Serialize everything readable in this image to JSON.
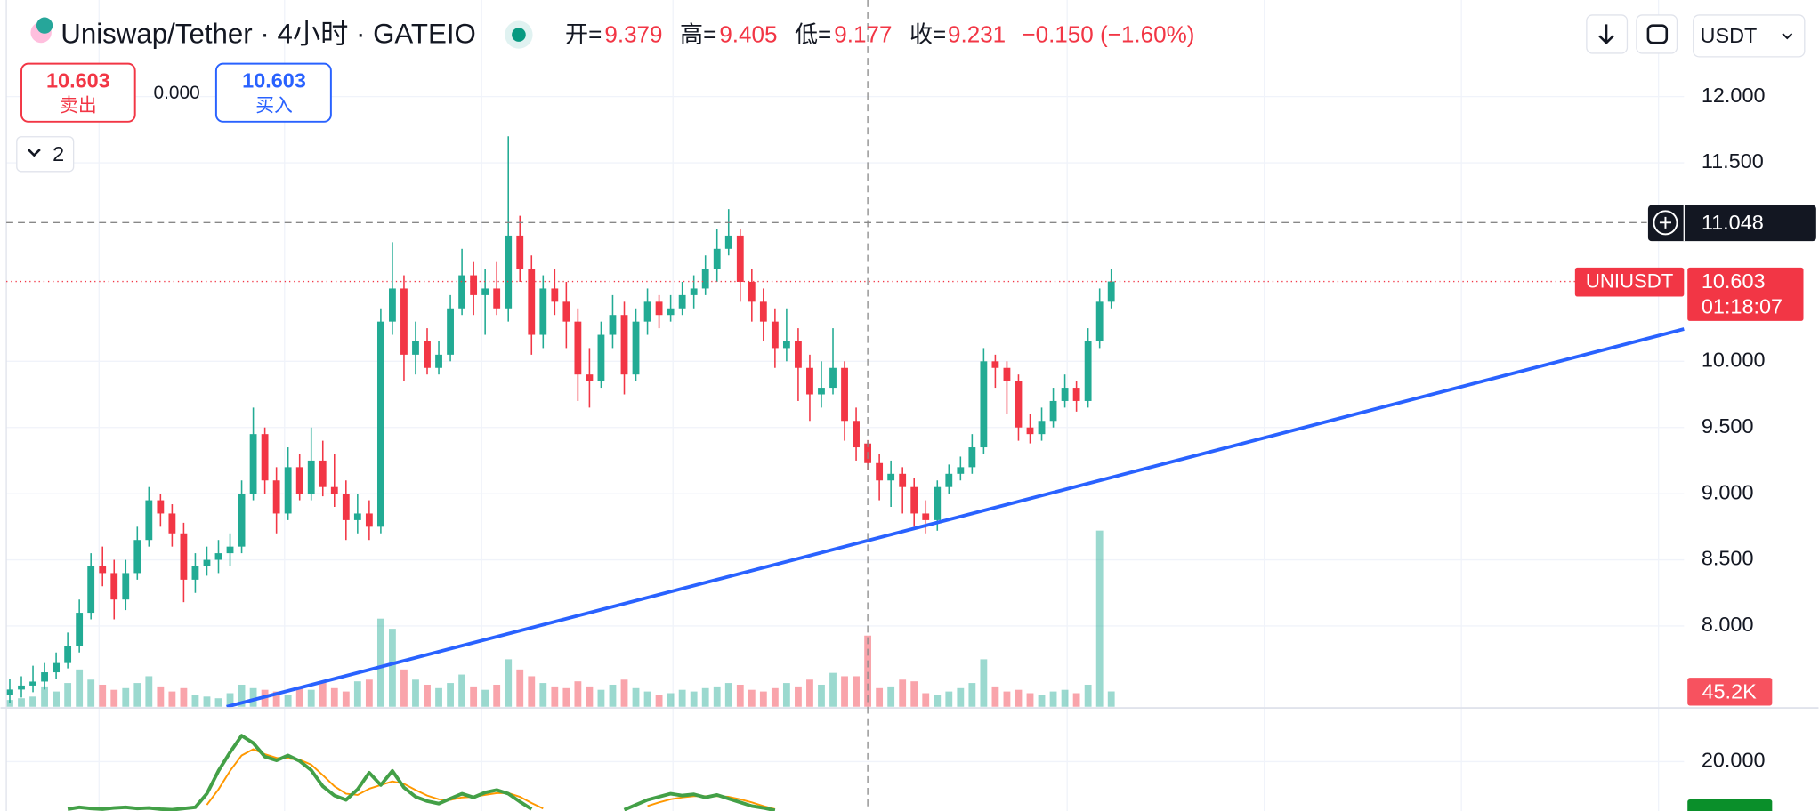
{
  "header": {
    "title": "Uniswap/Tether · 4小时 · GATEIO",
    "ohlc_labels": [
      "开=",
      "高=",
      "低=",
      "收="
    ],
    "change": "−0.150 (−1.60%)"
  },
  "toolbar": {
    "sell_price": "10.603",
    "sell_label": "卖出",
    "spread": "0.000",
    "buy_price": "10.603",
    "buy_label": "买入",
    "indicators_count": "2",
    "currency": "USDT"
  },
  "chart_data": [
    {
      "type": "candlestick",
      "symbol": "UNIUSDT",
      "last_price": 10.603,
      "countdown": "01:18:07",
      "crosshair_price": 11.048,
      "up_color": "#22ab94",
      "down_color": "#f23645",
      "grid": true,
      "ylim": [
        7.39,
        12.73
      ],
      "yticks": [
        {
          "value": 8,
          "label": "8.000"
        },
        {
          "value": 8.5,
          "label": "8.500"
        },
        {
          "value": 9,
          "label": "9.000"
        },
        {
          "value": 9.5,
          "label": "9.500"
        },
        {
          "value": 10,
          "label": "10.000"
        },
        {
          "value": 11.5,
          "label": "11.500"
        },
        {
          "value": 12,
          "label": "12.000"
        }
      ],
      "candles": [
        [
          7.48,
          7.6,
          7.42,
          7.52
        ],
        [
          7.52,
          7.62,
          7.46,
          7.55
        ],
        [
          7.55,
          7.7,
          7.5,
          7.58
        ],
        [
          7.58,
          7.72,
          7.52,
          7.65
        ],
        [
          7.65,
          7.8,
          7.6,
          7.72
        ],
        [
          7.72,
          7.95,
          7.68,
          7.85
        ],
        [
          7.85,
          8.2,
          7.8,
          8.1
        ],
        [
          8.1,
          8.55,
          8.05,
          8.45
        ],
        [
          8.45,
          8.6,
          8.3,
          8.4
        ],
        [
          8.4,
          8.5,
          8.05,
          8.2
        ],
        [
          8.2,
          8.5,
          8.12,
          8.4
        ],
        [
          8.4,
          8.75,
          8.35,
          8.65
        ],
        [
          8.65,
          9.05,
          8.6,
          8.95
        ],
        [
          8.95,
          9.0,
          8.75,
          8.85
        ],
        [
          8.85,
          8.92,
          8.6,
          8.7
        ],
        [
          8.7,
          8.78,
          8.18,
          8.35
        ],
        [
          8.35,
          8.55,
          8.25,
          8.45
        ],
        [
          8.45,
          8.6,
          8.38,
          8.5
        ],
        [
          8.5,
          8.65,
          8.4,
          8.55
        ],
        [
          8.55,
          8.7,
          8.45,
          8.6
        ],
        [
          8.6,
          9.1,
          8.55,
          9.0
        ],
        [
          9.0,
          9.65,
          8.95,
          9.45
        ],
        [
          9.45,
          9.5,
          9.0,
          9.1
        ],
        [
          9.1,
          9.2,
          8.7,
          8.85
        ],
        [
          8.85,
          9.35,
          8.8,
          9.2
        ],
        [
          9.2,
          9.3,
          8.95,
          9.0
        ],
        [
          9.0,
          9.5,
          8.95,
          9.25
        ],
        [
          9.25,
          9.4,
          8.98,
          9.05
        ],
        [
          9.05,
          9.3,
          8.9,
          9.0
        ],
        [
          9.0,
          9.1,
          8.65,
          8.8
        ],
        [
          8.8,
          9.0,
          8.7,
          8.85
        ],
        [
          8.85,
          8.95,
          8.65,
          8.75
        ],
        [
          8.75,
          10.4,
          8.7,
          10.3
        ],
        [
          10.3,
          10.9,
          10.2,
          10.55
        ],
        [
          10.55,
          10.65,
          9.85,
          10.05
        ],
        [
          10.05,
          10.3,
          9.9,
          10.15
        ],
        [
          10.15,
          10.25,
          9.9,
          9.95
        ],
        [
          9.95,
          10.15,
          9.9,
          10.05
        ],
        [
          10.05,
          10.5,
          10.0,
          10.4
        ],
        [
          10.4,
          10.85,
          10.35,
          10.65
        ],
        [
          10.65,
          10.75,
          10.35,
          10.5
        ],
        [
          10.5,
          10.7,
          10.2,
          10.55
        ],
        [
          10.55,
          10.75,
          10.35,
          10.4
        ],
        [
          10.4,
          11.7,
          10.3,
          10.95
        ],
        [
          10.95,
          11.1,
          10.6,
          10.7
        ],
        [
          10.7,
          10.8,
          10.05,
          10.2
        ],
        [
          10.2,
          10.65,
          10.1,
          10.55
        ],
        [
          10.55,
          10.7,
          10.35,
          10.45
        ],
        [
          10.45,
          10.6,
          10.1,
          10.3
        ],
        [
          10.3,
          10.4,
          9.7,
          9.9
        ],
        [
          9.9,
          10.1,
          9.65,
          9.85
        ],
        [
          9.85,
          10.3,
          9.8,
          10.2
        ],
        [
          10.2,
          10.5,
          10.1,
          10.35
        ],
        [
          10.35,
          10.45,
          9.75,
          9.9
        ],
        [
          9.9,
          10.4,
          9.85,
          10.3
        ],
        [
          10.3,
          10.55,
          10.2,
          10.45
        ],
        [
          10.45,
          10.5,
          10.25,
          10.35
        ],
        [
          10.35,
          10.5,
          10.3,
          10.4
        ],
        [
          10.4,
          10.6,
          10.35,
          10.5
        ],
        [
          10.5,
          10.65,
          10.4,
          10.55
        ],
        [
          10.55,
          10.8,
          10.5,
          10.7
        ],
        [
          10.7,
          11.0,
          10.6,
          10.85
        ],
        [
          10.85,
          11.15,
          10.8,
          10.95
        ],
        [
          10.95,
          11.0,
          10.45,
          10.6
        ],
        [
          10.6,
          10.7,
          10.3,
          10.45
        ],
        [
          10.45,
          10.55,
          10.15,
          10.3
        ],
        [
          10.3,
          10.4,
          9.95,
          10.1
        ],
        [
          10.1,
          10.4,
          10.0,
          10.15
        ],
        [
          10.15,
          10.25,
          9.7,
          9.95
        ],
        [
          9.95,
          10.05,
          9.55,
          9.75
        ],
        [
          9.75,
          10.0,
          9.65,
          9.8
        ],
        [
          9.8,
          10.25,
          9.75,
          9.95
        ],
        [
          9.95,
          10.0,
          9.4,
          9.55
        ],
        [
          9.55,
          9.65,
          9.25,
          9.35
        ],
        [
          9.379,
          9.405,
          9.177,
          9.231
        ],
        [
          9.231,
          9.3,
          8.95,
          9.1
        ],
        [
          9.1,
          9.25,
          8.9,
          9.15
        ],
        [
          9.15,
          9.2,
          8.85,
          9.05
        ],
        [
          9.05,
          9.12,
          8.75,
          8.85
        ],
        [
          8.85,
          8.95,
          8.7,
          8.8
        ],
        [
          8.8,
          9.1,
          8.72,
          9.05
        ],
        [
          9.05,
          9.22,
          9.0,
          9.15
        ],
        [
          9.15,
          9.28,
          9.1,
          9.2
        ],
        [
          9.2,
          9.45,
          9.15,
          9.35
        ],
        [
          9.35,
          10.1,
          9.3,
          10.0
        ],
        [
          10.0,
          10.05,
          9.8,
          9.95
        ],
        [
          9.95,
          10.0,
          9.6,
          9.85
        ],
        [
          9.85,
          9.9,
          9.4,
          9.5
        ],
        [
          9.5,
          9.6,
          9.38,
          9.45
        ],
        [
          9.45,
          9.65,
          9.4,
          9.55
        ],
        [
          9.55,
          9.8,
          9.5,
          9.7
        ],
        [
          9.7,
          9.9,
          9.65,
          9.8
        ],
        [
          9.8,
          9.85,
          9.62,
          9.7
        ],
        [
          9.7,
          10.25,
          9.65,
          10.15
        ],
        [
          10.15,
          10.55,
          10.1,
          10.45
        ],
        [
          10.45,
          10.7,
          10.4,
          10.603
        ]
      ],
      "volume": {
        "values": [
          20,
          25,
          30,
          60,
          45,
          70,
          110,
          80,
          65,
          50,
          55,
          70,
          90,
          60,
          45,
          55,
          35,
          30,
          25,
          40,
          65,
          55,
          50,
          45,
          35,
          60,
          50,
          70,
          55,
          45,
          75,
          80,
          260,
          230,
          110,
          80,
          65,
          55,
          70,
          95,
          60,
          50,
          65,
          140,
          110,
          90,
          70,
          60,
          55,
          75,
          60,
          50,
          65,
          80,
          55,
          45,
          35,
          40,
          50,
          45,
          55,
          60,
          70,
          65,
          50,
          45,
          55,
          70,
          60,
          80,
          65,
          100,
          90,
          90,
          210,
          55,
          60,
          80,
          75,
          40,
          35,
          45,
          55,
          70,
          140,
          60,
          45,
          50,
          40,
          35,
          45,
          50,
          40,
          65,
          520,
          45.2
        ],
        "last_label": "45.2K"
      }
    },
    {
      "type": "line",
      "ylim": [
        12,
        28.5
      ],
      "yticks": [
        {
          "value": 20,
          "label": "20.000"
        }
      ],
      "series": [
        {
          "color": "#43a047",
          "values": [
            null,
            null,
            null,
            null,
            null,
            12.3,
            12.6,
            12.4,
            12.3,
            12.5,
            12.6,
            12.4,
            12.5,
            12.3,
            12.2,
            12.4,
            12.6,
            14.8,
            18.5,
            21.5,
            24.2,
            23.0,
            20.8,
            20.2,
            21.0,
            20.1,
            18.6,
            16.0,
            14.5,
            13.8,
            15.5,
            18.2,
            16.2,
            18.5,
            15.8,
            14.3,
            13.6,
            13.2,
            14.0,
            14.8,
            14.2,
            15.0,
            15.4,
            14.8,
            13.5,
            12.3,
            null,
            null,
            null,
            null,
            null,
            null,
            null,
            12.2,
            13.0,
            13.8,
            14.3,
            14.8,
            14.5,
            14.7,
            14.2,
            14.6,
            14.0,
            13.4,
            12.8,
            12.5,
            12.1,
            null,
            null,
            null,
            null,
            null,
            null,
            null,
            null,
            null,
            null,
            null,
            null,
            null,
            null,
            null,
            null,
            null,
            null,
            null,
            null,
            null,
            null,
            null,
            null,
            null,
            null,
            null,
            null,
            null
          ]
        },
        {
          "color": "#ff9800",
          "values": [
            null,
            null,
            null,
            null,
            null,
            null,
            null,
            null,
            null,
            null,
            null,
            null,
            null,
            null,
            null,
            null,
            null,
            13.0,
            15.5,
            18.5,
            21.0,
            22.0,
            21.2,
            20.6,
            20.5,
            20.3,
            19.5,
            17.8,
            16.0,
            14.8,
            14.6,
            15.6,
            16.2,
            16.8,
            16.4,
            15.4,
            14.5,
            13.9,
            13.8,
            14.2,
            14.3,
            14.6,
            14.9,
            14.9,
            14.3,
            13.3,
            12.4,
            null,
            null,
            null,
            null,
            null,
            null,
            null,
            null,
            12.8,
            13.4,
            13.9,
            14.2,
            14.4,
            14.4,
            14.4,
            14.3,
            13.9,
            13.4,
            12.8,
            12.3,
            null,
            null,
            null,
            null,
            null,
            null,
            null,
            null,
            null,
            null,
            null,
            null,
            null,
            null,
            null,
            null,
            null,
            null,
            null,
            null,
            null,
            null,
            null,
            null,
            null,
            null,
            null,
            null,
            null
          ]
        }
      ]
    }
  ]
}
